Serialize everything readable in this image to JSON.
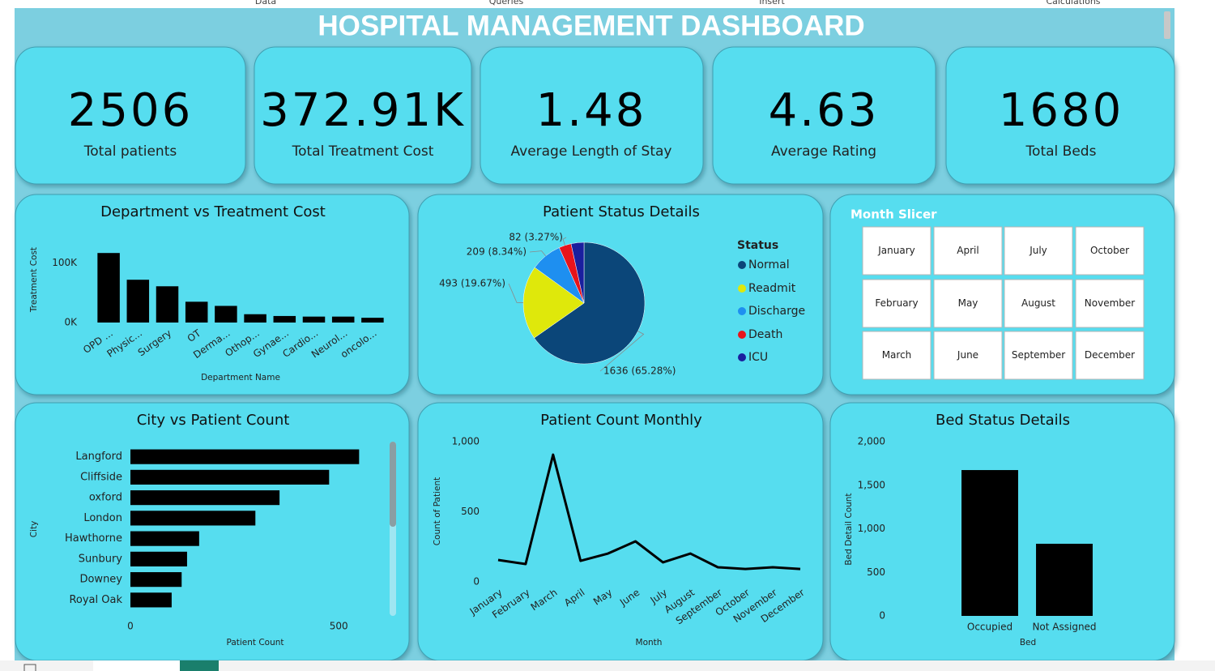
{
  "ribbon": [
    "Data",
    "Queries",
    "Insert",
    "Calculations"
  ],
  "header": {
    "title": "HOSPITAL MANAGEMENT DASHBOARD"
  },
  "kpis": [
    {
      "value": 2506,
      "label": "Total patients"
    },
    {
      "value": "372.91K",
      "label": "Total Treatment Cost"
    },
    {
      "value": 1.48,
      "label": "Average Length of Stay"
    },
    {
      "value": 4.63,
      "label": "Average Rating"
    },
    {
      "value": 1680,
      "label": "Total Beds"
    }
  ],
  "slicer": {
    "title": "Month Slicer",
    "items": [
      "January",
      "February",
      "March",
      "April",
      "May",
      "June",
      "July",
      "August",
      "September",
      "October",
      "November",
      "December"
    ]
  },
  "chart_data": [
    {
      "type": "bar",
      "title": "Department vs Treatment Cost",
      "x_label": "Department Name",
      "y_label": "Treatment Cost",
      "categories": [
        "OPD ...",
        "Physic...",
        "Surgery",
        "OT",
        "Derma...",
        "Othop...",
        "Gynae...",
        "Cardio...",
        "Neurol...",
        "oncolo..."
      ],
      "values": [
        117000,
        72000,
        61000,
        35000,
        28000,
        14000,
        11000,
        10000,
        10000,
        8000
      ],
      "color": "#000000",
      "ylim": [
        0,
        120000
      ],
      "yticks": [
        {
          "value": 0,
          "label": "0K"
        },
        {
          "value": 100000,
          "label": "100K"
        }
      ]
    },
    {
      "type": "pie",
      "title": "Patient Status Details",
      "legend_title": "Status",
      "categories": [
        "Normal",
        "Readmit",
        "Discharge",
        "Death",
        "ICU"
      ],
      "values": [
        1636,
        493,
        209,
        82,
        86
      ],
      "value_labels": [
        "1636 (65.28%)",
        "493 (19.67%)",
        "209 (8.34%)",
        "82 (3.27%)",
        null
      ],
      "colors": [
        "#0b4679",
        "#dfe80b",
        "#1e8ff0",
        "#e8131b",
        "#1a1f9e"
      ]
    },
    {
      "type": "hbar",
      "title": "City vs Patient Count",
      "x_label": "Patient Count",
      "y_label": "City",
      "categories": [
        "Langford",
        "Cliffside",
        "oxford",
        "London",
        "Hawthorne",
        "Sunbury",
        "Downey",
        "Royal Oak"
      ],
      "values": [
        549,
        477,
        358,
        300,
        165,
        136,
        123,
        99
      ],
      "color": "#000000",
      "xlim": [
        0,
        560
      ],
      "xticks": [
        0,
        500
      ]
    },
    {
      "type": "line",
      "title": "Patient Count Monthly",
      "x_label": "Month",
      "y_label": "Count of Patient",
      "categories": [
        "January",
        "February",
        "March",
        "April",
        "May",
        "June",
        "July",
        "August",
        "September",
        "October",
        "November",
        "December"
      ],
      "values": [
        156,
        127,
        907,
        150,
        202,
        289,
        139,
        202,
        104,
        92,
        104,
        92
      ],
      "color": "#000000",
      "ylim": [
        0,
        1000
      ],
      "yticks": [
        0,
        500,
        {
          "value": 1000,
          "label": "1,000"
        }
      ]
    },
    {
      "type": "bar",
      "title": "Bed Status Details",
      "x_label": "Bed",
      "y_label": "Bed Detail Count",
      "categories": [
        "Occupied",
        "Not Assigned"
      ],
      "values": [
        1674,
        828
      ],
      "color": "#000000",
      "ylim": [
        0,
        2000
      ],
      "yticks": [
        0,
        500,
        {
          "value": 1000,
          "label": "1,000"
        },
        {
          "value": 1500,
          "label": "1,500"
        },
        {
          "value": 2000,
          "label": "2,000"
        }
      ]
    }
  ]
}
